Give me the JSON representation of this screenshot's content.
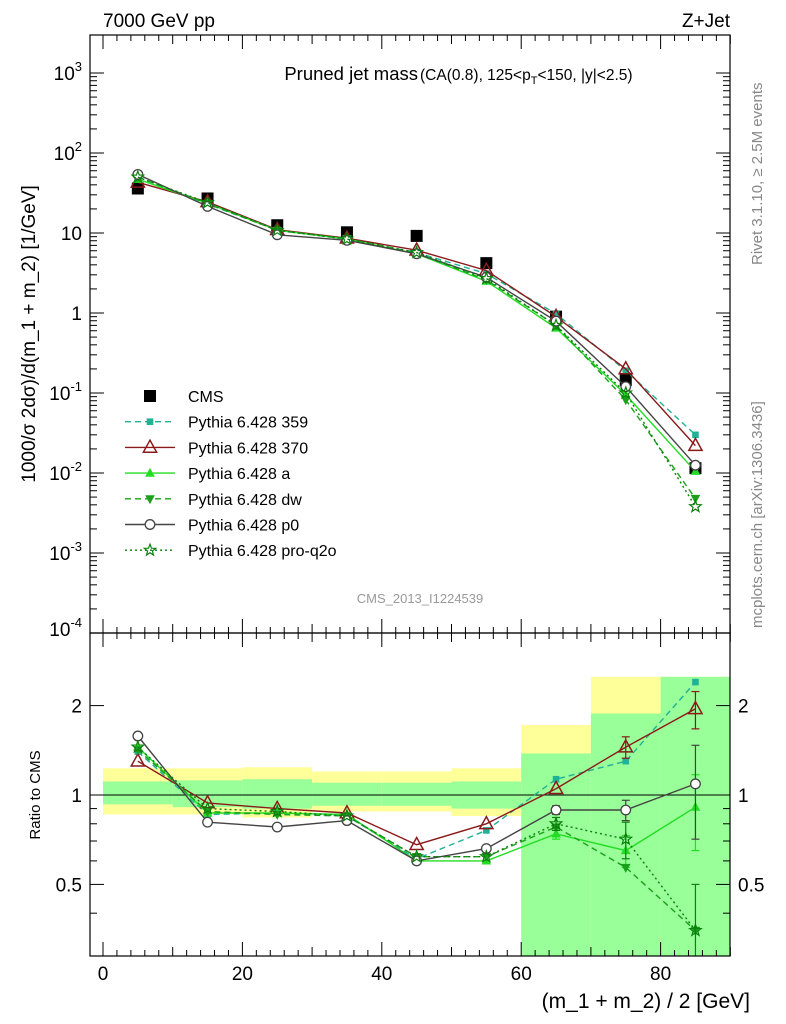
{
  "header": {
    "left": "7000 GeV pp",
    "right": "Z+Jet"
  },
  "side": {
    "rivet": "Rivet 3.1.10, ≥ 2.5M events",
    "mcplots": "mcplots.cern.ch [arXiv:1306.3436]"
  },
  "colors": {
    "cms": "#000000",
    "p359": "#20b294",
    "p370": "#8b1a1a",
    "a": "#22dd22",
    "dw": "#1aa01a",
    "p0": "#444444",
    "proq2o": "#0d800d",
    "band_yellow": "#ffff99",
    "band_green": "#99ff99"
  },
  "chart_data": [
    {
      "type": "line",
      "title": "Pruned jet mass",
      "subtitle": "(CA(0.8), 125<p_T<150, |y|<2.5)",
      "watermark": "CMS_2013_I1224539",
      "ylabel": "1000/σ 2dσ)/d(m_1 + m_2) [1/GeV]",
      "yscale": "log",
      "ylim": [
        0.0001,
        3000
      ],
      "xlim": [
        -2,
        90
      ],
      "legend": "left-middle",
      "y_tick_labels": [
        "10^-4",
        "10^-3",
        "10^-2",
        "10^-1",
        "1",
        "10",
        "10^2",
        "10^3"
      ],
      "x": [
        5,
        15,
        25,
        35,
        45,
        55,
        65,
        75,
        85
      ],
      "series": [
        {
          "name": "CMS",
          "key": "cms",
          "marker": "square",
          "line": "none",
          "values": [
            36,
            27,
            12.5,
            10.2,
            9.2,
            4.2,
            0.9,
            0.145,
            0.0115
          ]
        },
        {
          "name": "Pythia 6.428 359",
          "key": "p359",
          "marker": "square-small",
          "line": "dashed",
          "values": [
            50,
            23,
            10.8,
            8.4,
            5.7,
            3.1,
            0.98,
            0.19,
            0.03
          ]
        },
        {
          "name": "Pythia 6.428 370",
          "key": "p370",
          "marker": "triangle-open",
          "line": "solid",
          "values": [
            43,
            24.5,
            11,
            8.6,
            6.1,
            3.4,
            0.9,
            0.2,
            0.022
          ]
        },
        {
          "name": "Pythia 6.428 a",
          "key": "a",
          "marker": "triangle",
          "line": "solid",
          "values": [
            47,
            23.5,
            10.8,
            8.4,
            5.5,
            2.5,
            0.65,
            0.095,
            0.0105
          ]
        },
        {
          "name": "Pythia 6.428 dw",
          "key": "dw",
          "marker": "triangle-down",
          "line": "dashed",
          "values": [
            50,
            23.5,
            10.8,
            8.5,
            5.6,
            2.6,
            0.7,
            0.082,
            0.0048
          ]
        },
        {
          "name": "Pythia 6.428 p0",
          "key": "p0",
          "marker": "circle-open",
          "line": "solid",
          "values": [
            54,
            21.5,
            9.5,
            8.1,
            5.5,
            2.8,
            0.79,
            0.12,
            0.0125
          ]
        },
        {
          "name": "Pythia 6.428 pro-q2o",
          "key": "proq2o",
          "marker": "star",
          "line": "dotted",
          "values": [
            50,
            24,
            10.8,
            8.4,
            5.7,
            2.7,
            0.7,
            0.1,
            0.0038
          ]
        }
      ]
    },
    {
      "type": "line",
      "title": "",
      "xlabel": "(m_1 + m_2) / 2 [GeV]",
      "ylabel": "Ratio to CMS",
      "ylim": [
        0.35,
        2.28
      ],
      "xlim": [
        -2,
        90
      ],
      "x_ticks": [
        0,
        20,
        40,
        60,
        80
      ],
      "y_ticks": [
        0.5,
        1,
        2
      ],
      "reference_line": 1,
      "bands": [
        {
          "x0": 0,
          "x1": 10,
          "yellow": [
            0.86,
            1.23
          ],
          "green": [
            0.93,
            1.11
          ]
        },
        {
          "x0": 10,
          "x1": 20,
          "yellow": [
            0.86,
            1.23
          ],
          "green": [
            0.91,
            1.12
          ]
        },
        {
          "x0": 20,
          "x1": 30,
          "yellow": [
            0.84,
            1.24
          ],
          "green": [
            0.9,
            1.13
          ]
        },
        {
          "x0": 30,
          "x1": 40,
          "yellow": [
            0.88,
            1.2
          ],
          "green": [
            0.92,
            1.1
          ]
        },
        {
          "x0": 40,
          "x1": 50,
          "yellow": [
            0.88,
            1.2
          ],
          "green": [
            0.92,
            1.1
          ]
        },
        {
          "x0": 50,
          "x1": 60,
          "yellow": [
            0.85,
            1.23
          ],
          "green": [
            0.9,
            1.11
          ]
        },
        {
          "x0": 60,
          "x1": 70,
          "yellow": [
            0.2,
            1.72
          ],
          "green": [
            0.2,
            1.38
          ]
        },
        {
          "x0": 70,
          "x1": 80,
          "yellow": [
            0.2,
            2.5
          ],
          "green": [
            0.2,
            1.88
          ]
        },
        {
          "x0": 80,
          "x1": 90,
          "yellow": [
            0.2,
            2.5
          ],
          "green": [
            0.2,
            2.5
          ]
        }
      ],
      "x": [
        5,
        15,
        25,
        35,
        45,
        55,
        65,
        75,
        85
      ],
      "series": [
        {
          "name": "Pythia 6.428 359",
          "key": "p359",
          "marker": "square-small",
          "line": "dashed",
          "values": [
            1.4,
            0.86,
            0.87,
            0.85,
            0.61,
            0.76,
            1.13,
            1.3,
            2.4
          ]
        },
        {
          "name": "Pythia 6.428 370",
          "key": "p370",
          "marker": "triangle-open",
          "line": "solid",
          "values": [
            1.3,
            0.94,
            0.9,
            0.87,
            0.68,
            0.8,
            1.05,
            1.45,
            1.95
          ],
          "err": [
            0,
            0,
            0,
            0,
            0,
            0,
            0,
            0.12,
            0.28
          ]
        },
        {
          "name": "Pythia 6.428 a",
          "key": "a",
          "marker": "triangle",
          "line": "solid",
          "values": [
            1.45,
            0.87,
            0.87,
            0.86,
            0.6,
            0.6,
            0.74,
            0.65,
            0.91
          ],
          "err": [
            0,
            0,
            0,
            0,
            0,
            0,
            0.03,
            0.08,
            0.26
          ]
        },
        {
          "name": "Pythia 6.428 dw",
          "key": "dw",
          "marker": "triangle-down",
          "line": "dashed",
          "values": [
            1.42,
            0.88,
            0.86,
            0.85,
            0.62,
            0.62,
            0.78,
            0.57,
            0.35
          ]
        },
        {
          "name": "Pythia 6.428 p0",
          "key": "p0",
          "marker": "circle-open",
          "line": "solid",
          "values": [
            1.58,
            0.81,
            0.78,
            0.82,
            0.6,
            0.66,
            0.89,
            0.89,
            1.09
          ],
          "err": [
            0,
            0,
            0,
            0,
            0,
            0,
            0.03,
            0.07,
            0.38
          ]
        },
        {
          "name": "Pythia 6.428 pro-q2o",
          "key": "proq2o",
          "marker": "star",
          "line": "dotted",
          "values": [
            1.45,
            0.9,
            0.88,
            0.85,
            0.62,
            0.62,
            0.8,
            0.71,
            0.35
          ],
          "err": [
            0,
            0,
            0,
            0,
            0,
            0,
            0.04,
            0.1,
            0.15
          ]
        }
      ]
    }
  ]
}
